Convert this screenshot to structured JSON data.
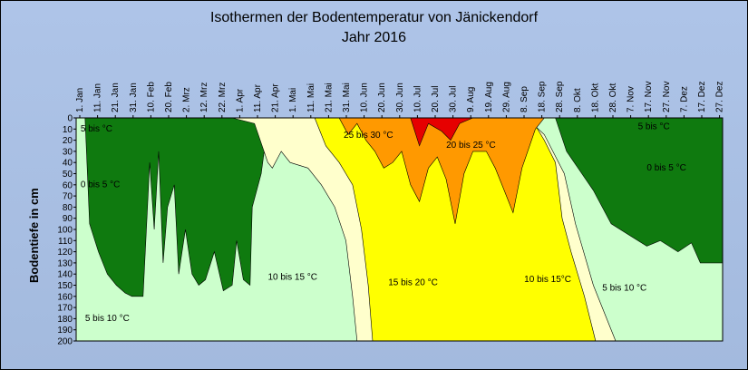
{
  "chart_data": {
    "type": "area",
    "title": "Isothermen der Bodentemperatur von Jänickendorf",
    "subtitle": "Jahr 2016",
    "ylabel": "Bodentiefe in cm",
    "xlabel": "",
    "ylim": [
      0,
      200
    ],
    "y_ticks": [
      0,
      10,
      20,
      30,
      40,
      50,
      60,
      70,
      80,
      90,
      100,
      110,
      120,
      130,
      140,
      150,
      160,
      170,
      180,
      190,
      200
    ],
    "x_ticks": [
      "1. Jan",
      "11. Jan",
      "21. Jan",
      "31. Jan",
      "10. Feb",
      "20. Feb",
      "2. Mrz",
      "12. Mrz",
      "22. Mrz",
      "1. Apr",
      "11. Apr",
      "21. Apr",
      "1. Mai",
      "11. Mai",
      "21. Mai",
      "31. Mai",
      "10. Jun",
      "20. Jun",
      "30. Jun",
      "10. Jul",
      "20. Jul",
      "30. Jul",
      "9. Aug",
      "19. Aug",
      "29. Aug",
      "8. Sep",
      "18. Sep",
      "28. Sep",
      "8. Okt",
      "18. Okt",
      "28. Okt",
      "7. Nov",
      "17. Nov",
      "27. Nov",
      "7. Dez",
      "17. Dez",
      "27. Dez"
    ],
    "series": [
      {
        "name": "0 bis 5 °C",
        "color": "#0f7a0f",
        "boundary": [
          [
            0,
            0
          ],
          [
            4,
            0
          ],
          [
            6,
            95
          ],
          [
            10,
            120
          ],
          [
            14,
            140
          ],
          [
            18,
            150
          ],
          [
            22,
            157
          ],
          [
            25,
            160
          ],
          [
            30,
            160
          ],
          [
            33,
            40
          ],
          [
            35,
            100
          ],
          [
            37,
            30
          ],
          [
            39,
            130
          ],
          [
            41,
            80
          ],
          [
            44,
            60
          ],
          [
            46,
            140
          ],
          [
            49,
            100
          ],
          [
            52,
            140
          ],
          [
            55,
            150
          ],
          [
            58,
            145
          ],
          [
            62,
            120
          ],
          [
            66,
            155
          ],
          [
            70,
            150
          ],
          [
            72,
            110
          ],
          [
            75,
            145
          ],
          [
            78,
            150
          ],
          [
            79,
            80
          ],
          [
            83,
            50
          ],
          [
            85,
            20
          ],
          [
            87,
            0
          ],
          [
            215,
            0
          ],
          [
            220,
            30
          ],
          [
            232,
            65
          ],
          [
            240,
            95
          ],
          [
            248,
            105
          ],
          [
            256,
            115
          ],
          [
            262,
            110
          ],
          [
            270,
            120
          ],
          [
            276,
            112
          ],
          [
            280,
            130
          ],
          [
            290,
            130
          ],
          [
            290,
            0
          ],
          [
            0,
            0
          ]
        ]
      },
      {
        "name": "10 bis 15 °C",
        "color": "#ffffcc",
        "boundary": [
          [
            70,
            0
          ],
          [
            80,
            5
          ],
          [
            86,
            40
          ],
          [
            88,
            45
          ],
          [
            92,
            30
          ],
          [
            96,
            40
          ],
          [
            104,
            45
          ],
          [
            110,
            60
          ],
          [
            116,
            80
          ],
          [
            121,
            110
          ],
          [
            124,
            160
          ],
          [
            126,
            200
          ],
          [
            242,
            200
          ],
          [
            232,
            150
          ],
          [
            224,
            95
          ],
          [
            219,
            50
          ],
          [
            210,
            15
          ],
          [
            202,
            0
          ],
          [
            70,
            0
          ]
        ]
      },
      {
        "name": "15 bis 20 °C",
        "color": "#ffff00",
        "boundary": [
          [
            107,
            0
          ],
          [
            112,
            25
          ],
          [
            118,
            40
          ],
          [
            124,
            60
          ],
          [
            128,
            100
          ],
          [
            131,
            150
          ],
          [
            133,
            200
          ],
          [
            233,
            200
          ],
          [
            228,
            160
          ],
          [
            222,
            120
          ],
          [
            218,
            90
          ],
          [
            215,
            40
          ],
          [
            210,
            20
          ],
          [
            204,
            0
          ],
          [
            107,
            0
          ]
        ]
      },
      {
        "name": "20 bis 25 °C",
        "color": "#ff9900",
        "boundary": [
          [
            118,
            0
          ],
          [
            122,
            15
          ],
          [
            126,
            5
          ],
          [
            130,
            20
          ],
          [
            134,
            30
          ],
          [
            138,
            45
          ],
          [
            142,
            40
          ],
          [
            146,
            30
          ],
          [
            150,
            60
          ],
          [
            154,
            75
          ],
          [
            158,
            45
          ],
          [
            162,
            35
          ],
          [
            166,
            55
          ],
          [
            170,
            95
          ],
          [
            174,
            50
          ],
          [
            178,
            30
          ],
          [
            184,
            30
          ],
          [
            188,
            45
          ],
          [
            192,
            65
          ],
          [
            196,
            85
          ],
          [
            200,
            45
          ],
          [
            206,
            10
          ],
          [
            210,
            0
          ],
          [
            118,
            0
          ]
        ]
      },
      {
        "name": "25 bis 30 °C",
        "color": "#e60000",
        "boundary": [
          [
            150,
            0
          ],
          [
            154,
            25
          ],
          [
            158,
            5
          ],
          [
            164,
            12
          ],
          [
            168,
            20
          ],
          [
            172,
            5
          ],
          [
            178,
            0
          ],
          [
            150,
            0
          ]
        ]
      }
    ],
    "zone_labels": [
      {
        "text": "5 bis 10 °C",
        "x": 4,
        "depth": 182
      },
      {
        "text": "0 bis 5 °C",
        "x": 2,
        "depth": 62
      },
      {
        "text": "5 bis °C",
        "x": 2,
        "depth": 12
      },
      {
        "text": "10 bis 15 °C",
        "x": 86,
        "depth": 145
      },
      {
        "text": "15 bis 20 °C",
        "x": 140,
        "depth": 150
      },
      {
        "text": "25 bis 30 °C",
        "x": 120,
        "depth": 18
      },
      {
        "text": "20 bis 25 °C",
        "x": 166,
        "depth": 27
      },
      {
        "text": "10 bis 15°C",
        "x": 201,
        "depth": 147
      },
      {
        "text": "5 bis 10 °C",
        "x": 236,
        "depth": 155
      },
      {
        "text": "5 bis °C",
        "x": 252,
        "depth": 10
      },
      {
        "text": "0 bis 5 °C",
        "x": 256,
        "depth": 47
      }
    ]
  }
}
